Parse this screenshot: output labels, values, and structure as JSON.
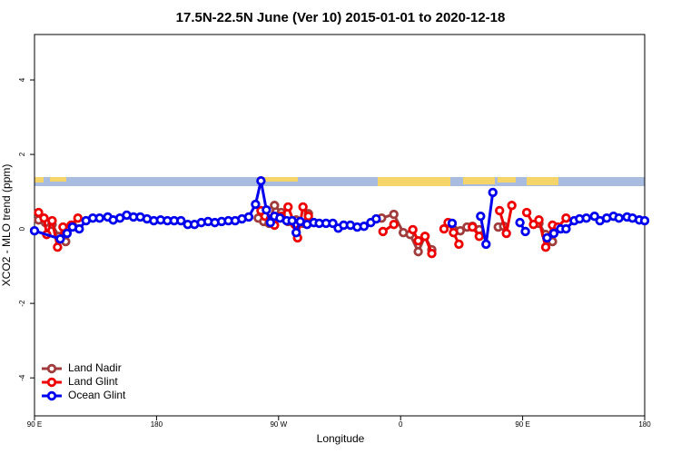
{
  "chart_data": {
    "type": "line",
    "title": "17.5N-22.5N June (Ver 10)   2015-01-01 to 2020-12-18",
    "x_label": "Longitude",
    "y_label": "XCO2 - MLO trend (ppm)",
    "xlim": [
      90,
      540
    ],
    "xticks": [
      {
        "value": 90,
        "label": "90 E"
      },
      {
        "value": 180,
        "label": "180"
      },
      {
        "value": 270,
        "label": "90 W"
      },
      {
        "value": 360,
        "label": "0"
      },
      {
        "value": 450,
        "label": "90 E"
      },
      {
        "value": 540,
        "label": "180"
      }
    ],
    "ylim": [
      -5.02,
      5.22
    ],
    "yticks": [
      -4,
      -2,
      0,
      2,
      4
    ],
    "legend": "bottom-left",
    "series": [
      {
        "name": "Land Nadir",
        "color": "#a03c3c",
        "x": [
          93,
          98,
          103,
          108,
          113,
          118,
          null,
          255,
          259,
          263,
          267,
          272,
          277,
          283,
          288,
          292,
          null,
          346,
          355,
          362,
          367,
          373,
          378,
          383,
          null,
          397,
          404,
          409,
          413,
          418,
          null,
          432,
          436,
          null,
          462,
          467,
          472
        ],
        "values": [
          0.24,
          0.17,
          0.12,
          -0.2,
          -0.34,
          0.1,
          null,
          0.29,
          0.2,
          0.15,
          0.63,
          0.44,
          0.2,
          0.24,
          0.15,
          0.41,
          null,
          0.29,
          0.39,
          -0.1,
          -0.15,
          -0.61,
          -0.2,
          -0.56,
          null,
          0.15,
          -0.05,
          0.05,
          0.07,
          -0.02,
          null,
          0.05,
          0.07,
          null,
          0.15,
          -0.15,
          -0.34
        ]
      },
      {
        "name": "Land Glint",
        "color": "#ee0000",
        "x": [
          93,
          97,
          99,
          103,
          107,
          111,
          117,
          122,
          null,
          257,
          260,
          264,
          267,
          272,
          277,
          282,
          284,
          288,
          292,
          null,
          347,
          355,
          null,
          369,
          373,
          378,
          383,
          null,
          392,
          395,
          399,
          403,
          null,
          413,
          418,
          null,
          433,
          438,
          442,
          null,
          453,
          458,
          462,
          467,
          472,
          476,
          482
        ],
        "values": [
          0.44,
          0.29,
          -0.15,
          0.22,
          -0.49,
          0.05,
          0.1,
          0.29,
          null,
          0.49,
          0.34,
          0.27,
          0.1,
          0.34,
          0.59,
          0.12,
          -0.24,
          0.59,
          0.34,
          null,
          -0.07,
          0.12,
          null,
          -0.02,
          -0.32,
          -0.2,
          -0.66,
          null,
          0,
          0.17,
          -0.1,
          -0.41,
          null,
          0.05,
          -0.2,
          null,
          0.49,
          -0.12,
          0.63,
          null,
          0.44,
          0.12,
          0.24,
          -0.49,
          0.1,
          0.05,
          0.29
        ]
      },
      {
        "name": "Ocean Glint",
        "color": "#0000ee",
        "x": [
          90,
          109,
          114,
          118,
          123,
          128,
          133,
          138,
          144,
          148,
          153,
          158,
          163,
          168,
          173,
          178,
          183,
          188,
          193,
          198,
          203,
          208,
          213,
          218,
          223,
          228,
          233,
          238,
          243,
          248,
          253,
          257,
          261,
          264,
          267,
          271,
          276,
          280,
          283,
          286,
          291,
          296,
          300,
          305,
          310,
          314,
          318,
          323,
          328,
          333,
          338,
          342,
          null,
          398,
          null,
          419,
          423,
          428,
          null,
          448,
          452,
          null,
          468,
          473,
          478,
          482,
          488,
          492,
          497,
          503,
          507,
          512,
          517,
          521,
          527,
          531,
          536,
          540
        ],
        "values": [
          -0.05,
          -0.27,
          -0.12,
          0.05,
          0,
          0.22,
          0.29,
          0.29,
          0.32,
          0.24,
          0.29,
          0.37,
          0.32,
          0.32,
          0.27,
          0.22,
          0.24,
          0.22,
          0.22,
          0.22,
          0.12,
          0.12,
          0.17,
          0.2,
          0.17,
          0.2,
          0.22,
          0.22,
          0.27,
          0.32,
          0.66,
          1.29,
          0.51,
          0.17,
          0.34,
          0.29,
          0.22,
          0.22,
          -0.1,
          0.2,
          0.12,
          0.17,
          0.15,
          0.15,
          0.15,
          0.02,
          0.1,
          0.1,
          0.05,
          0.07,
          0.17,
          0.27,
          null,
          0.15,
          null,
          0.34,
          -0.41,
          0.98,
          null,
          0.17,
          -0.07,
          null,
          -0.24,
          -0.12,
          0,
          0,
          0.22,
          0.27,
          0.29,
          0.34,
          0.22,
          0.29,
          0.34,
          0.29,
          0.32,
          0.29,
          0.24,
          0.22
        ]
      }
    ]
  }
}
